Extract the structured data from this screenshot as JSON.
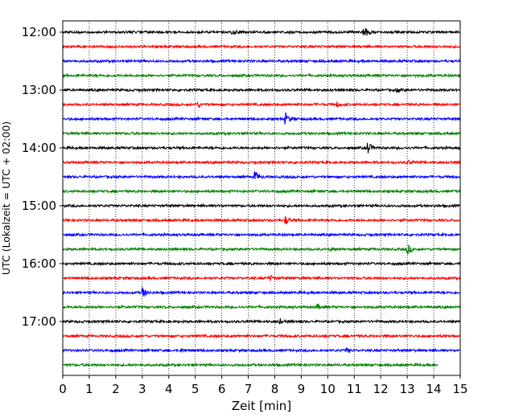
{
  "chart_data": {
    "type": "line",
    "title": "",
    "xlabel": "Zeit  [min]",
    "ylabel": "UTC (Lokalzeit = UTC + 02:00)",
    "xlim": [
      0,
      15
    ],
    "x_ticks": [
      "0",
      "1",
      "2",
      "3",
      "4",
      "5",
      "6",
      "7",
      "8",
      "9",
      "10",
      "11",
      "12",
      "13",
      "14",
      "15"
    ],
    "y_ticks": [
      "12:00",
      "13:00",
      "14:00",
      "15:00",
      "16:00",
      "17:00"
    ],
    "grid": "vertical dotted",
    "legend": "none",
    "colors": [
      "#000000",
      "#ff0000",
      "#0000ff",
      "#008000"
    ],
    "series": [
      {
        "start": "12:00",
        "end_min": 15,
        "color": "#000000",
        "events": [
          {
            "t": 6.4,
            "amp": 0.35
          },
          {
            "t": 11.35,
            "amp": 1.0
          }
        ]
      },
      {
        "start": "12:15",
        "end_min": 15,
        "color": "#ff0000",
        "events": []
      },
      {
        "start": "12:30",
        "end_min": 15,
        "color": "#0000ff",
        "events": []
      },
      {
        "start": "12:45",
        "end_min": 15,
        "color": "#008000",
        "events": []
      },
      {
        "start": "13:00",
        "end_min": 15,
        "color": "#000000",
        "events": [
          {
            "t": 12.6,
            "amp": 0.3
          }
        ]
      },
      {
        "start": "13:15",
        "end_min": 15,
        "color": "#ff0000",
        "events": [
          {
            "t": 5.1,
            "amp": 0.3
          },
          {
            "t": 10.35,
            "amp": 0.35
          }
        ]
      },
      {
        "start": "13:30",
        "end_min": 15,
        "color": "#0000ff",
        "events": [
          {
            "t": 8.4,
            "amp": 0.9
          }
        ]
      },
      {
        "start": "13:45",
        "end_min": 15,
        "color": "#008000",
        "events": []
      },
      {
        "start": "14:00",
        "end_min": 15,
        "color": "#000000",
        "events": [
          {
            "t": 11.5,
            "amp": 1.0
          }
        ]
      },
      {
        "start": "14:15",
        "end_min": 15,
        "color": "#ff0000",
        "events": [
          {
            "t": 13.0,
            "amp": 0.25
          }
        ]
      },
      {
        "start": "14:30",
        "end_min": 15,
        "color": "#0000ff",
        "events": [
          {
            "t": 7.25,
            "amp": 0.85
          }
        ]
      },
      {
        "start": "14:45",
        "end_min": 15,
        "color": "#008000",
        "events": []
      },
      {
        "start": "15:00",
        "end_min": 15,
        "color": "#000000",
        "events": []
      },
      {
        "start": "15:15",
        "end_min": 15,
        "color": "#ff0000",
        "events": [
          {
            "t": 8.4,
            "amp": 0.6
          }
        ]
      },
      {
        "start": "15:30",
        "end_min": 15,
        "color": "#0000ff",
        "events": []
      },
      {
        "start": "15:45",
        "end_min": 15,
        "color": "#008000",
        "events": [
          {
            "t": 10.1,
            "amp": 0.3
          },
          {
            "t": 13.0,
            "amp": 0.8
          }
        ]
      },
      {
        "start": "16:00",
        "end_min": 15,
        "color": "#000000",
        "events": []
      },
      {
        "start": "16:15",
        "end_min": 15,
        "color": "#ff0000",
        "events": [
          {
            "t": 7.8,
            "amp": 0.4
          }
        ]
      },
      {
        "start": "16:30",
        "end_min": 15,
        "color": "#0000ff",
        "events": [
          {
            "t": 3.0,
            "amp": 0.8
          }
        ]
      },
      {
        "start": "16:45",
        "end_min": 15,
        "color": "#008000",
        "events": [
          {
            "t": 9.6,
            "amp": 0.35
          }
        ]
      },
      {
        "start": "17:00",
        "end_min": 15,
        "color": "#000000",
        "events": [
          {
            "t": 8.2,
            "amp": 0.25
          }
        ]
      },
      {
        "start": "17:15",
        "end_min": 15,
        "color": "#ff0000",
        "events": []
      },
      {
        "start": "17:30",
        "end_min": 15,
        "color": "#0000ff",
        "events": [
          {
            "t": 4.5,
            "amp": 0.25
          },
          {
            "t": 10.7,
            "amp": 0.3
          }
        ]
      },
      {
        "start": "17:45",
        "end_min": 14.15,
        "color": "#008000",
        "events": []
      }
    ]
  }
}
